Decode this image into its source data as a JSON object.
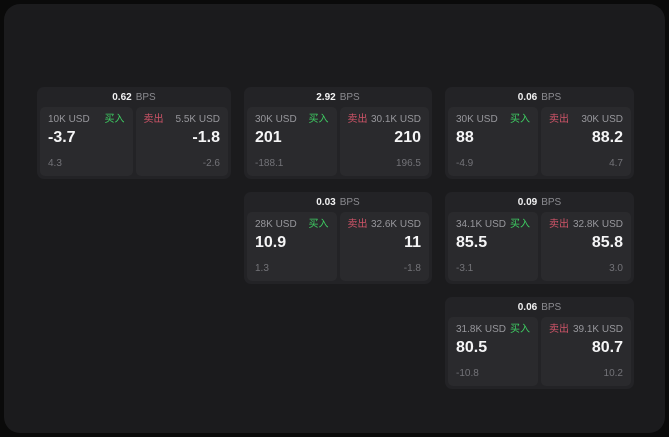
{
  "labels": {
    "buy": "买入",
    "sell": "卖出",
    "bps_unit": "BPS"
  },
  "colors": {
    "buy_green": "#3ecf63",
    "sell_red": "#cf5468",
    "window_bg": "#1b1b1d",
    "card_bg": "#232326",
    "panel_bg": "#2a2a2d"
  },
  "cards": [
    {
      "bps": "0.62",
      "buy": {
        "amount": "10K USD",
        "value": "-3.7",
        "delta": "4.3"
      },
      "sell": {
        "amount": "5.5K USD",
        "value": "-1.8",
        "delta": "-2.6"
      }
    },
    {
      "bps": "2.92",
      "buy": {
        "amount": "30K USD",
        "value": "201",
        "delta": "-188.1"
      },
      "sell": {
        "amount": "30.1K USD",
        "value": "210",
        "delta": "196.5"
      }
    },
    {
      "bps": "0.06",
      "buy": {
        "amount": "30K USD",
        "value": "88",
        "delta": "-4.9"
      },
      "sell": {
        "amount": "30K USD",
        "value": "88.2",
        "delta": "4.7"
      }
    },
    {
      "bps": "0.03",
      "buy": {
        "amount": "28K USD",
        "value": "10.9",
        "delta": "1.3"
      },
      "sell": {
        "amount": "32.6K USD",
        "value": "11",
        "delta": "-1.8"
      }
    },
    {
      "bps": "0.09",
      "buy": {
        "amount": "34.1K USD",
        "value": "85.5",
        "delta": "-3.1"
      },
      "sell": {
        "amount": "32.8K USD",
        "value": "85.8",
        "delta": "3.0"
      }
    },
    {
      "bps": "0.06",
      "buy": {
        "amount": "31.8K USD",
        "value": "80.5",
        "delta": "-10.8"
      },
      "sell": {
        "amount": "39.1K USD",
        "value": "80.7",
        "delta": "10.2"
      }
    }
  ]
}
